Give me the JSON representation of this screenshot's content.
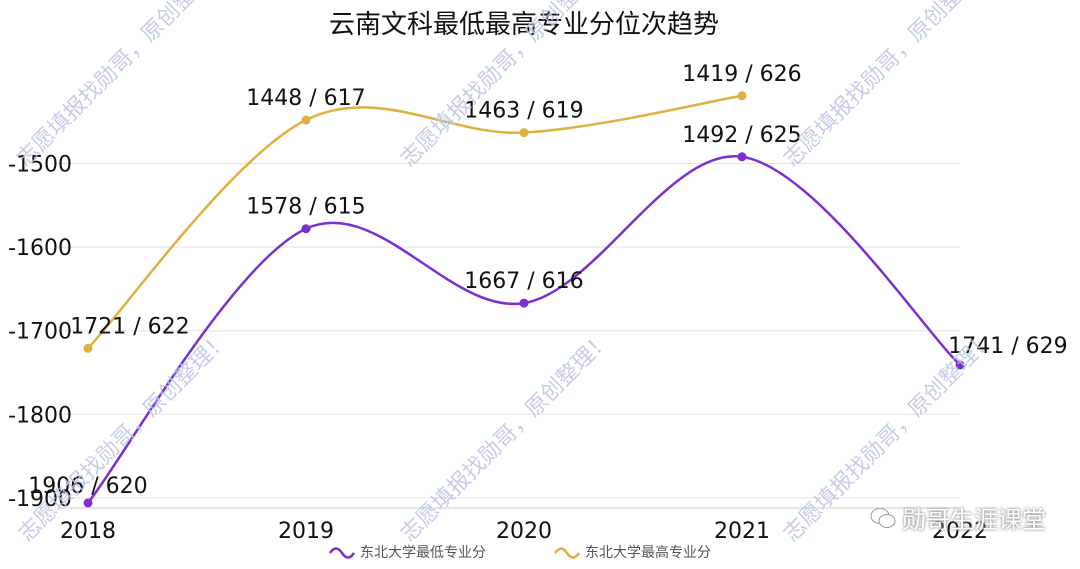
{
  "chart_data": {
    "type": "line",
    "title": "云南文科最低最高专业分位次趋势",
    "categories": [
      "2018",
      "2019",
      "2020",
      "2021",
      "2022"
    ],
    "y_tick_labels": [
      "-1500",
      "-1600",
      "-1700",
      "-1800",
      "-1900"
    ],
    "ylim": [
      -1910,
      -1425
    ],
    "series": [
      {
        "name": "东北大学最低专业分",
        "color": "#7b2fd0",
        "values": [
          -1906,
          -1578,
          -1667,
          -1492,
          -1741
        ],
        "labels": [
          "1906 / 620",
          "1578 / 615",
          "1667 / 616",
          "1492 / 625",
          "1741 / 629"
        ]
      },
      {
        "name": "东北大学最高专业分",
        "color": "#e0b040",
        "values": [
          -1721,
          -1448,
          -1463,
          -1419,
          null
        ],
        "labels": [
          "1721 / 622",
          "1448 / 617",
          "1463 / 619",
          "1419 / 626",
          null
        ]
      }
    ],
    "legend_position": "bottom",
    "grid": true
  },
  "watermark_text": "志愿填报找勋哥，原创整理！",
  "brand_text": "勋哥生涯课堂",
  "colors": {
    "grid": "#e3e3e3",
    "text": "#111111",
    "watermark": "#b9c6e6"
  }
}
